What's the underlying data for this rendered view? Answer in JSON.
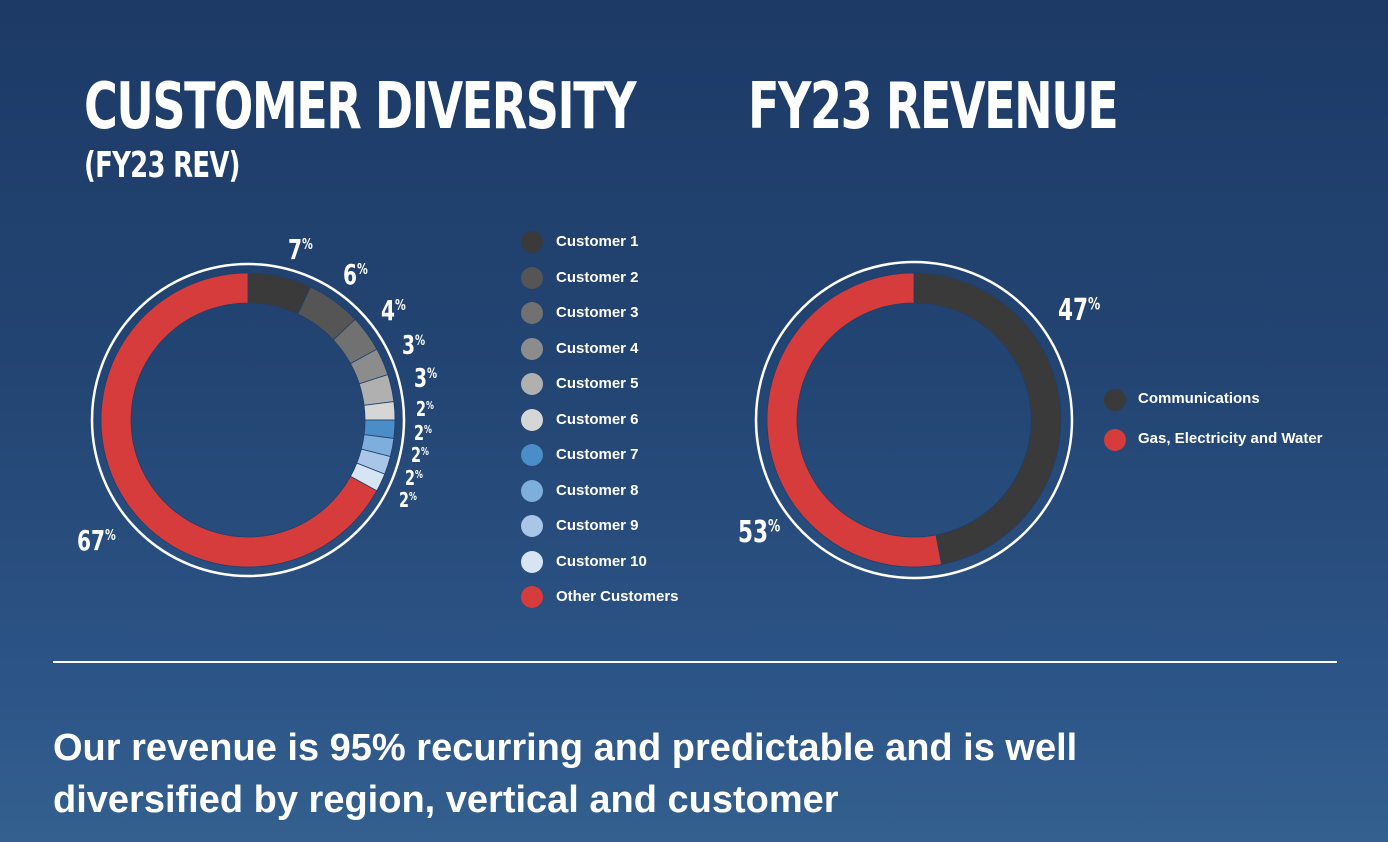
{
  "titles": {
    "customer_diversity": "CUSTOMER DIVERSITY",
    "customer_diversity_sub": "(FY23 REV)",
    "fy23_revenue": "FY23 REVENUE"
  },
  "chart_data": [
    {
      "type": "pie",
      "title": "CUSTOMER DIVERSITY (FY23 REV)",
      "categories": [
        "Customer 1",
        "Customer 2",
        "Customer 3",
        "Customer 4",
        "Customer 5",
        "Customer 6",
        "Customer 7",
        "Customer 8",
        "Customer 9",
        "Customer 10",
        "Other Customers"
      ],
      "values": [
        7,
        6,
        4,
        3,
        3,
        2,
        2,
        2,
        2,
        2,
        67
      ],
      "labels": [
        "7%",
        "6%",
        "4%",
        "3%",
        "3%",
        "2%",
        "2%",
        "2%",
        "2%",
        "2%",
        "67%"
      ],
      "colors": [
        "#3a3a3a",
        "#555555",
        "#717171",
        "#8c8c8c",
        "#b0b0b0",
        "#d6d6d6",
        "#4a8dc7",
        "#7eaedb",
        "#a9c6e8",
        "#d7e4f4",
        "#d63c3c"
      ],
      "legend": "right"
    },
    {
      "type": "pie",
      "title": "FY23 REVENUE",
      "categories": [
        "Communications",
        "Gas, Electricity and Water"
      ],
      "values": [
        47,
        53
      ],
      "labels": [
        "47%",
        "53%"
      ],
      "colors": [
        "#3a3a3a",
        "#d63c3c"
      ],
      "legend": "right"
    }
  ],
  "footer": {
    "line1": "Our revenue is 95% recurring and predictable and is well",
    "line2": "diversified by region, vertical and customer"
  }
}
